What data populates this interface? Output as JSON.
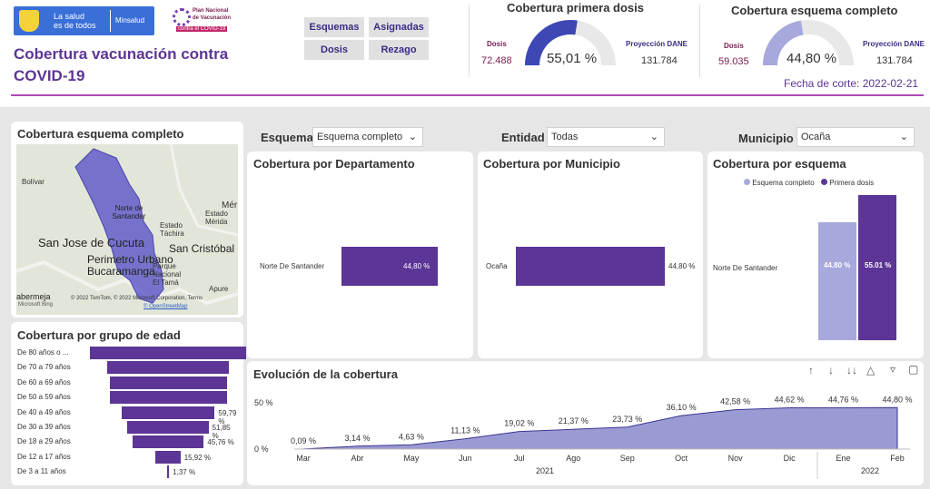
{
  "header": {
    "logo_text_line1": "La salud",
    "logo_text_line2": "es de todos",
    "ministry": "Minsalud",
    "plan_line1": "Plan Nacional",
    "plan_line2": "de Vacunación",
    "plan_line3": "contra el COVID-19",
    "title_line1": "Cobertura vacunación contra",
    "title_line2": "COVID-19",
    "nav": [
      "Esquemas",
      "Asignadas",
      "Dosis",
      "Rezago"
    ],
    "cut_date_label": "Fecha de corte: 2022-02-21"
  },
  "kpi_primera": {
    "title": "Cobertura primera dosis",
    "doses_label": "Dosis",
    "doses_value": "72.488",
    "percent": "55,01 %",
    "percent_value": 55.01,
    "proj_label": "Proyección DANE",
    "proj_value": "131.784"
  },
  "kpi_completo": {
    "title": "Cobertura esquema completo",
    "doses_label": "Dosis",
    "doses_value": "59.035",
    "percent": "44,80 %",
    "percent_value": 44.8,
    "proj_label": "Proyección DANE",
    "proj_value": "131.784"
  },
  "map": {
    "title": "Cobertura esquema completo",
    "labels": [
      "Bolívar",
      "Norte de Santander",
      "Estado Táchira",
      "Estado Mérida",
      "San Jose de Cucuta",
      "Perimetro Urbano Bucaramanga",
      "San Cristóbal",
      "Parque Nacional El Tamá",
      "Apure",
      "Mér"
    ],
    "attribution": "© 2022 TomTom, © 2022 Microsoft Corporation, Terms",
    "attribution2": "© OpenStreetMap",
    "bottom_left": "abermeja",
    "bottom_left2": "Microsoft Bing"
  },
  "filters": {
    "esquema_label": "Esquema",
    "esquema_value": "Esquema completo",
    "entidad_label": "Entidad",
    "entidad_value": "Todas",
    "municipio_label": "Municipio",
    "municipio_value": "Ocaña"
  },
  "dept_chart": {
    "title": "Cobertura por Departamento",
    "category": "Norte De Santander",
    "value_label": "44,80 %"
  },
  "muni_chart": {
    "title": "Cobertura por Municipio",
    "category": "Ocaña",
    "value_label": "44,80 %"
  },
  "scheme_chart": {
    "title": "Cobertura por esquema",
    "legend": [
      "Esquema completo",
      "Primera dosis"
    ],
    "category": "Norte De Santander",
    "labels": [
      "44.80 %",
      "55.01 %"
    ]
  },
  "age_chart": {
    "title": "Cobertura por grupo de edad",
    "rows": [
      {
        "label": "De 80 años o ...",
        "value_label": ""
      },
      {
        "label": "De 70 a 79 años",
        "value_label": ""
      },
      {
        "label": "De 60 a 69 años",
        "value_label": ""
      },
      {
        "label": "De 50 a 59 años",
        "value_label": ""
      },
      {
        "label": "De 40 a 49 años",
        "value_label": "59,79 %"
      },
      {
        "label": "De 30 a 39 años",
        "value_label": "51,85 %"
      },
      {
        "label": "De 18 a 29 años",
        "value_label": "45,76 %"
      },
      {
        "label": "De 12 a 17 años",
        "value_label": "15,92 %"
      },
      {
        "label": "De 3 a 11 años",
        "value_label": "1,37 %"
      }
    ]
  },
  "evolution": {
    "title": "Evolución de la cobertura",
    "y_ticks": [
      "50 %",
      "0 %"
    ],
    "years": [
      "2021",
      "2022"
    ]
  },
  "chart_data": [
    {
      "type": "bar",
      "title": "Cobertura por Departamento",
      "categories": [
        "Norte De Santander"
      ],
      "values": [
        44.8
      ]
    },
    {
      "type": "bar",
      "title": "Cobertura por Municipio",
      "categories": [
        "Ocaña"
      ],
      "values": [
        44.8
      ]
    },
    {
      "type": "bar",
      "title": "Cobertura por esquema",
      "categories": [
        "Norte De Santander"
      ],
      "series": [
        {
          "name": "Esquema completo",
          "values": [
            44.8
          ]
        },
        {
          "name": "Primera dosis",
          "values": [
            55.01
          ]
        }
      ]
    },
    {
      "type": "bar",
      "title": "Cobertura por grupo de edad",
      "categories": [
        "De 80 años o ...",
        "De 70 a 79 años",
        "De 60 a 69 años",
        "De 50 a 59 años",
        "De 40 a 49 años",
        "De 30 a 39 años",
        "De 18 a 29 años",
        "De 12 a 17 años",
        "De 3 a 11 años"
      ],
      "values": [
        100,
        78,
        75,
        75,
        59.79,
        51.85,
        45.76,
        15.92,
        1.37
      ]
    },
    {
      "type": "area",
      "title": "Evolución de la cobertura",
      "x": [
        "Mar",
        "Abr",
        "May",
        "Jun",
        "Jul",
        "Ago",
        "Sep",
        "Oct",
        "Nov",
        "Dic",
        "Ene",
        "Feb"
      ],
      "values": [
        0.09,
        3.14,
        4.63,
        11.13,
        19.02,
        21.37,
        23.73,
        36.1,
        42.58,
        44.62,
        44.76,
        44.8
      ],
      "value_labels": [
        "0,09 %",
        "3,14 %",
        "4,63 %",
        "11,13 %",
        "19,02 %",
        "21,37 %",
        "23,73 %",
        "36,10 %",
        "42,58 %",
        "44,62 %",
        "44,76 %",
        "44,80 %"
      ],
      "ylim": [
        0,
        50
      ],
      "y_ticks": [
        "50 %",
        "0 %"
      ]
    }
  ]
}
